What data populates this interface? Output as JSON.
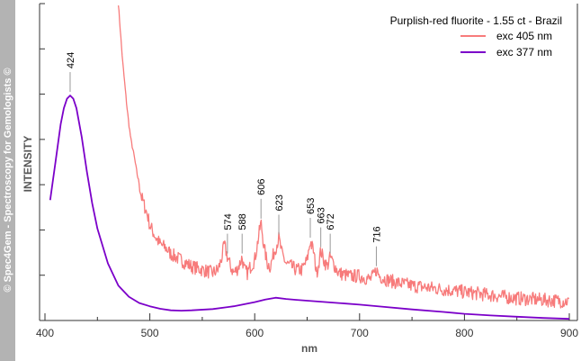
{
  "sidebar": {
    "copyright": "© Spec4Gem - Spectroscopy for Gemologists ©"
  },
  "chart_data": {
    "type": "line",
    "title": "Purplish-red fluorite - 1.55 ct - Brazil",
    "xlabel": "nm",
    "ylabel": "INTENSITY",
    "xlim": [
      400,
      900
    ],
    "ylim": [
      0,
      100
    ],
    "xticks": [
      "400",
      "500",
      "600",
      "700",
      "800",
      "900"
    ],
    "series": [
      {
        "name": "exc 405 nm",
        "color": "#f77b7b",
        "x": [
          470,
          472,
          474,
          476,
          478,
          480,
          482,
          485,
          488,
          490,
          492,
          495,
          498,
          500,
          503,
          506,
          510,
          515,
          520,
          525,
          530,
          540,
          550,
          560,
          565,
          568,
          571,
          574,
          577,
          580,
          583,
          586,
          588,
          590,
          593,
          596,
          600,
          603,
          606,
          609,
          612,
          615,
          618,
          620,
          623,
          626,
          630,
          635,
          640,
          645,
          650,
          653,
          656,
          659,
          661,
          663,
          666,
          669,
          672,
          675,
          680,
          690,
          700,
          710,
          713,
          716,
          719,
          725,
          735,
          750,
          775,
          800,
          825,
          850,
          875,
          900
        ],
        "values": [
          100,
          91,
          82,
          75,
          68,
          62,
          57,
          52,
          46,
          43,
          39,
          36,
          33,
          30,
          28,
          26,
          24,
          23,
          21,
          20,
          19,
          17,
          16,
          15,
          16,
          19,
          24,
          20,
          17,
          15,
          16,
          18,
          20,
          16,
          15,
          17,
          19,
          25,
          31,
          23,
          18,
          17,
          21,
          23,
          26,
          21,
          18,
          17,
          16,
          16,
          19,
          25,
          22,
          15,
          18,
          22,
          19,
          17,
          20,
          18,
          15,
          14,
          14,
          13,
          14,
          16,
          14,
          13,
          12,
          11,
          10,
          9,
          8,
          7,
          6.5,
          6
        ]
      },
      {
        "name": "exc 377 nm",
        "color": "#7b00c9",
        "x": [
          405,
          410,
          415,
          418,
          421,
          424,
          427,
          430,
          435,
          440,
          445,
          450,
          460,
          470,
          480,
          490,
          500,
          510,
          520,
          530,
          540,
          560,
          580,
          600,
          610,
          620,
          630,
          640,
          660,
          680,
          700,
          720,
          750,
          780,
          800,
          825,
          850,
          875,
          900
        ],
        "values": [
          38,
          50,
          62,
          67,
          70,
          71,
          70,
          67,
          58,
          47,
          37,
          29,
          18,
          11,
          7.5,
          5.5,
          4.5,
          3.7,
          3.2,
          3.1,
          3.2,
          3.6,
          4.5,
          5.8,
          6.6,
          7.2,
          6.8,
          6.5,
          6.0,
          5.5,
          5.0,
          4.4,
          3.5,
          2.7,
          2.1,
          1.6,
          1.2,
          0.8,
          0.5
        ]
      }
    ],
    "annotations": [
      {
        "label": "424",
        "x": 424,
        "series": 1
      },
      {
        "label": "574",
        "x": 574,
        "series": 0
      },
      {
        "label": "588",
        "x": 588,
        "series": 0
      },
      {
        "label": "606",
        "x": 606,
        "series": 0
      },
      {
        "label": "623",
        "x": 623,
        "series": 0
      },
      {
        "label": "653",
        "x": 653,
        "series": 0
      },
      {
        "label": "663",
        "x": 663,
        "series": 0
      },
      {
        "label": "672",
        "x": 672,
        "series": 0
      },
      {
        "label": "716",
        "x": 716,
        "series": 0
      }
    ]
  }
}
